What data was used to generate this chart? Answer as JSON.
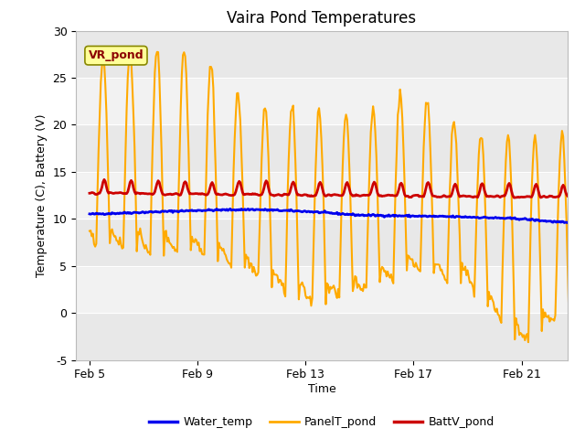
{
  "title": "Vaira Pond Temperatures",
  "xlabel": "Time",
  "ylabel": "Temperature (C), Battery (V)",
  "annotation_text": "VR_pond",
  "xlim_days": [
    4.5,
    22.7
  ],
  "ylim": [
    -5,
    30
  ],
  "yticks": [
    -5,
    0,
    5,
    10,
    15,
    20,
    25,
    30
  ],
  "xtick_positions": [
    5,
    9,
    13,
    17,
    21
  ],
  "xtick_labels": [
    "Feb 5",
    "Feb 9",
    "Feb 13",
    "Feb 17",
    "Feb 21"
  ],
  "colors": {
    "water_temp": "#0000ee",
    "panel_temp": "#ffaa00",
    "batt_v": "#cc0000",
    "fig_bg": "#ffffff",
    "plot_bg": "#ffffff",
    "annotation_bg": "#ffff99",
    "annotation_border": "#888800",
    "band_dark": "#e8e8e8",
    "band_light": "#f2f2f2"
  },
  "legend_labels": [
    "Water_temp",
    "PanelT_pond",
    "BattV_pond"
  ],
  "linewidths": {
    "water_temp": 2.0,
    "panel_temp": 1.5,
    "batt_v": 2.0
  }
}
